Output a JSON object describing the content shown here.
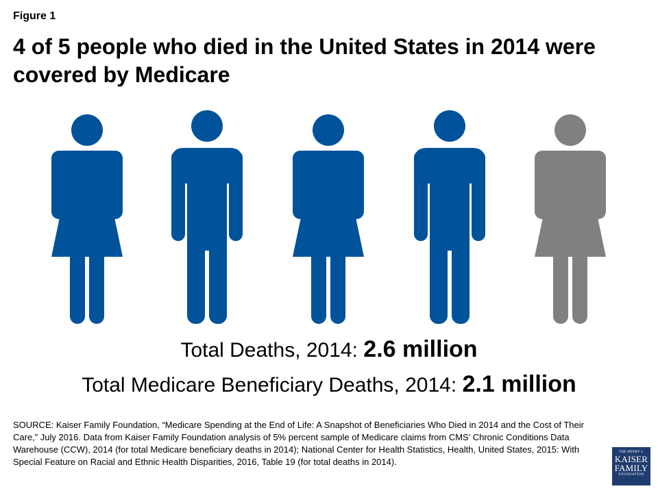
{
  "figure_label": "Figure 1",
  "chart_data": {
    "type": "pictograph",
    "title": "4 of 5 people who died in the United States in 2014 were covered by Medicare",
    "icons": [
      {
        "shape": "female",
        "highlighted": true
      },
      {
        "shape": "male",
        "highlighted": true
      },
      {
        "shape": "female",
        "highlighted": true
      },
      {
        "shape": "male",
        "highlighted": true
      },
      {
        "shape": "female",
        "highlighted": false
      }
    ],
    "highlighted_count": 4,
    "total_count": 5,
    "colors": {
      "highlighted": "#00529b",
      "other": "#808080"
    },
    "stats": [
      {
        "label": "Total Deaths, 2014: ",
        "value": "2.6 million"
      },
      {
        "label": "Total Medicare Beneficiary Deaths, 2014: ",
        "value": "2.1 million"
      }
    ]
  },
  "source": "SOURCE: Kaiser Family Foundation, “Medicare Spending at the End of Life: A Snapshot of Beneficiaries Who Died in 2014 and the Cost of Their Care,” July 2016. Data from Kaiser Family Foundation analysis of 5% percent sample of Medicare claims from CMS’ Chronic Conditions Data Warehouse (CCW), 2014 (for total Medicare beneficiary deaths in 2014); National Center for Health Statistics, Health, United States, 2015: With Special Feature on Racial and Ethnic Health Disparities, 2016, Table 19 (for total deaths in 2014).",
  "logo": {
    "line1": "THE HENRY J.",
    "line2": "KAISER",
    "line3": "FAMILY",
    "line4": "FOUNDATION"
  }
}
